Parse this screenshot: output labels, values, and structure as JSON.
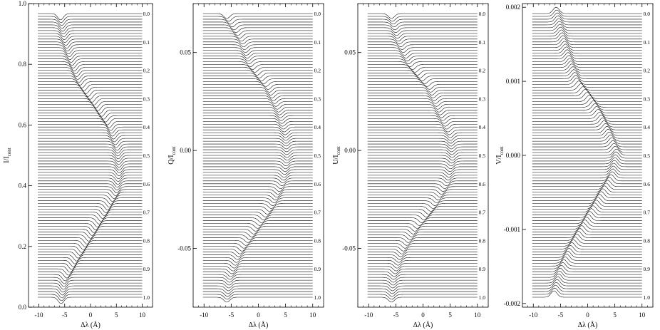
{
  "figure": {
    "phase_labels": [
      "0.0",
      "0.1",
      "0.2",
      "0.3",
      "0.4",
      "0.5",
      "0.6",
      "0.7",
      "0.8",
      "0.9",
      "1.0"
    ],
    "profile_count": 101,
    "line_color": "#000000"
  },
  "chart_data": [
    {
      "type": "line",
      "panel": "I",
      "ylabel_main": "I/I",
      "ylabel_sub": "cont",
      "xlabel": "Δλ (Å)",
      "xlim": [
        -12,
        12
      ],
      "ylim": [
        0.0,
        1.0
      ],
      "xticks": [
        -10,
        -5,
        0,
        5,
        10
      ],
      "xtick_labels": [
        "-10",
        "-5",
        "0",
        "5",
        "10"
      ],
      "yticks": [
        0.0,
        0.2,
        0.4,
        0.6,
        0.8,
        1.0
      ],
      "ytick_labels": [
        "0.0",
        "0.2",
        "0.4",
        "0.6",
        "0.8",
        "1.0"
      ],
      "profile_shape": "absorption",
      "phase_labels_inside": false,
      "center_x": [
        -5.8,
        -5.0,
        -3.7,
        -2.0,
        1.0,
        3.8,
        5.2,
        5.6,
        5.0,
        2.6,
        0.0,
        -2.6,
        -5.0,
        -5.7
      ],
      "center_y": [
        1.0,
        0.95,
        0.88,
        0.8,
        0.72,
        0.66,
        0.61,
        0.52,
        0.45,
        0.38,
        0.3,
        0.2,
        0.08,
        0.02
      ]
    },
    {
      "type": "line",
      "panel": "Q",
      "ylabel_main": "Q/I",
      "ylabel_sub": "cont",
      "xlabel": "Δλ (Å)",
      "xlim": [
        -12,
        12
      ],
      "ylim": [
        -0.08,
        0.075
      ],
      "xticks": [
        -10,
        -5,
        0,
        5,
        10
      ],
      "xtick_labels": [
        "-10",
        "-5",
        "0",
        "5",
        "10"
      ],
      "yticks": [
        -0.05,
        0.0,
        0.05
      ],
      "ytick_labels": [
        "-0.05",
        "0.00",
        "0.05"
      ],
      "profile_shape": "absorption",
      "phase_labels_inside": true,
      "center_x": [
        -5.8,
        -3.0,
        -1.6,
        1.8,
        3.8,
        5.0,
        5.3,
        4.5,
        2.5,
        -0.5,
        -3.5,
        -5.2,
        -5.8
      ],
      "center_y": [
        0.072,
        0.055,
        0.043,
        0.035,
        0.024,
        0.01,
        -0.005,
        -0.022,
        -0.038,
        -0.048,
        -0.058,
        -0.068,
        -0.075
      ]
    },
    {
      "type": "line",
      "panel": "U",
      "ylabel_main": "U/I",
      "ylabel_sub": "cont",
      "xlabel": "Δλ (Å)",
      "xlim": [
        -12,
        12
      ],
      "ylim": [
        -0.08,
        0.075
      ],
      "xticks": [
        -10,
        -5,
        0,
        5,
        10
      ],
      "xtick_labels": [
        "-10",
        "-5",
        "0",
        "5",
        "10"
      ],
      "yticks": [
        -0.05,
        0.0,
        0.05
      ],
      "ytick_labels": [
        "-0.05",
        "0.00",
        "0.05"
      ],
      "profile_shape": "absorption",
      "phase_labels_inside": false,
      "center_x": [
        -5.8,
        -4.5,
        -2.5,
        1.2,
        3.0,
        5.0,
        5.4,
        4.5,
        2.0,
        -1.5,
        -4.0,
        -5.4,
        -5.8
      ],
      "center_y": [
        0.072,
        0.062,
        0.048,
        0.034,
        0.022,
        0.01,
        -0.008,
        -0.022,
        -0.035,
        -0.046,
        -0.056,
        -0.066,
        -0.075
      ]
    },
    {
      "type": "line",
      "panel": "V",
      "ylabel_main": "V/I",
      "ylabel_sub": "cont",
      "xlabel": "Δλ (Å)",
      "xlim": [
        -12,
        12
      ],
      "ylim": [
        -0.00205,
        0.00205
      ],
      "xticks": [
        -10,
        -5,
        0,
        5,
        10
      ],
      "xtick_labels": [
        "-10",
        "-5",
        "0",
        "5",
        "10"
      ],
      "yticks": [
        -0.002,
        -0.001,
        0.0,
        0.001,
        0.002
      ],
      "ytick_labels": [
        "-0.002",
        "-0.001",
        "0.000",
        "0.001",
        "0.002"
      ],
      "profile_shape": "emission",
      "phase_labels_inside": false,
      "center_x": [
        -5.8,
        -4.8,
        -3.5,
        -2.0,
        1.2,
        3.5,
        5.3,
        4.5,
        2.0,
        -0.5,
        -3.0,
        -5.0,
        -6.2
      ],
      "center_y": [
        0.002,
        0.0016,
        0.0013,
        0.00105,
        0.00085,
        0.0004,
        0.0,
        -0.00035,
        -0.0008,
        -0.0011,
        -0.0014,
        -0.0017,
        -0.00195
      ]
    }
  ]
}
